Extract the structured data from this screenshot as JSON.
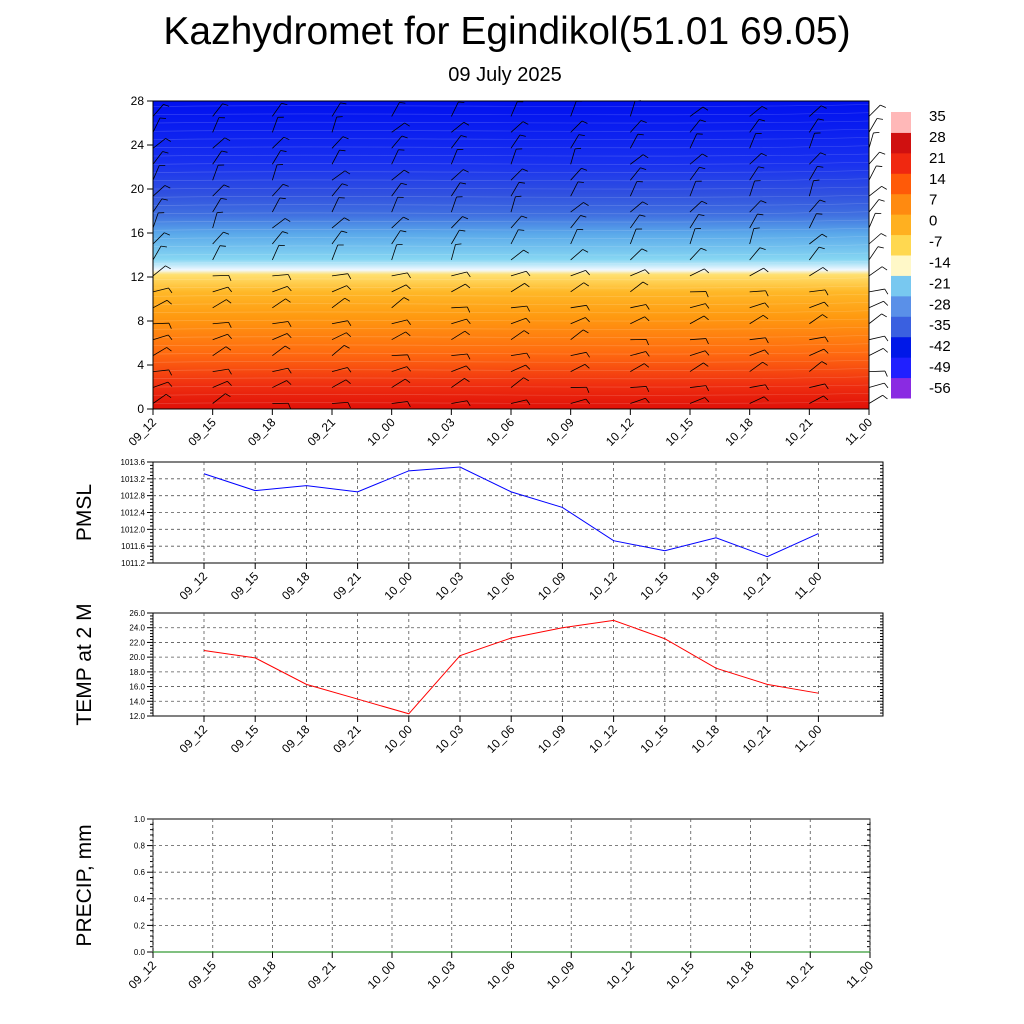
{
  "title": "Kazhydromet for Egindikol(51.01 69.05)",
  "subtitle": "09 July 2025",
  "chart_data": [
    {
      "type": "heatmap",
      "name": "temperature-profile",
      "title": "",
      "x_ticks": [
        "09_12",
        "09_15",
        "09_18",
        "09_21",
        "10_00",
        "10_03",
        "10_06",
        "10_09",
        "10_12",
        "10_15",
        "10_18",
        "10_21",
        "11_00"
      ],
      "y_ticks": [
        0,
        4,
        8,
        12,
        16,
        20,
        24,
        28
      ],
      "ylim": [
        0,
        28
      ],
      "colorbar_labels": [
        "35",
        "28",
        "21",
        "14",
        "7",
        "0",
        "-7",
        "-14",
        "-21",
        "-28",
        "-35",
        "-42",
        "-49",
        "-56"
      ],
      "colors": [
        "#8a2be2",
        "#2020ff",
        "#0018e8",
        "#3a60e0",
        "#5a90e8",
        "#78c8f0",
        "#fff8c8",
        "#ffd850",
        "#ffb020",
        "#ff8a10",
        "#ff5a08",
        "#f02810",
        "#d01010",
        "#ffb8b8"
      ],
      "freezing_level_approx": 12.5,
      "wind_barbs": true
    },
    {
      "type": "line",
      "name": "pmsl",
      "ylabel": "PMSL",
      "x": [
        "09_12",
        "09_15",
        "09_18",
        "09_21",
        "10_00",
        "10_03",
        "10_06",
        "10_09",
        "10_12",
        "10_15",
        "10_18",
        "10_21",
        "11_00"
      ],
      "series": [
        {
          "color": "#0000ff",
          "values": [
            1013.32,
            1012.92,
            1013.04,
            1012.89,
            1013.39,
            1013.48,
            1012.89,
            1012.52,
            1011.73,
            1011.49,
            1011.8,
            1011.35,
            1011.9
          ]
        }
      ],
      "ylim": [
        1011.2,
        1013.6
      ],
      "y_ticks": [
        "1011.2",
        "1011.6",
        "1012.0",
        "1012.4",
        "1012.8",
        "1013.2",
        "1013.6"
      ]
    },
    {
      "type": "line",
      "name": "temp-2m",
      "ylabel": "TEMP at 2 M",
      "x": [
        "09_12",
        "09_15",
        "09_18",
        "09_21",
        "10_00",
        "10_03",
        "10_06",
        "10_09",
        "10_12",
        "10_15",
        "10_18",
        "10_21",
        "11_00"
      ],
      "series": [
        {
          "color": "#ff0000",
          "values": [
            20.9,
            19.9,
            16.3,
            14.3,
            12.3,
            20.2,
            22.6,
            24.0,
            25.0,
            22.5,
            18.5,
            16.3,
            15.1
          ]
        }
      ],
      "ylim": [
        12.0,
        26.0
      ],
      "y_ticks": [
        "12.0",
        "14.0",
        "16.0",
        "18.0",
        "20.0",
        "22.0",
        "24.0",
        "26.0"
      ]
    },
    {
      "type": "line",
      "name": "precip",
      "ylabel": "PRECIP, mm",
      "x": [
        "09_12",
        "09_15",
        "09_18",
        "09_21",
        "10_00",
        "10_03",
        "10_06",
        "10_09",
        "10_12",
        "10_15",
        "10_18",
        "10_21",
        "11_00"
      ],
      "series": [
        {
          "color": "#008000",
          "values": [
            0,
            0,
            0,
            0,
            0,
            0,
            0,
            0,
            0,
            0,
            0,
            0,
            0
          ]
        }
      ],
      "ylim": [
        0.0,
        1.0
      ],
      "y_ticks": [
        "0.0",
        "0.2",
        "0.4",
        "0.6",
        "0.8",
        "1.0"
      ]
    }
  ]
}
